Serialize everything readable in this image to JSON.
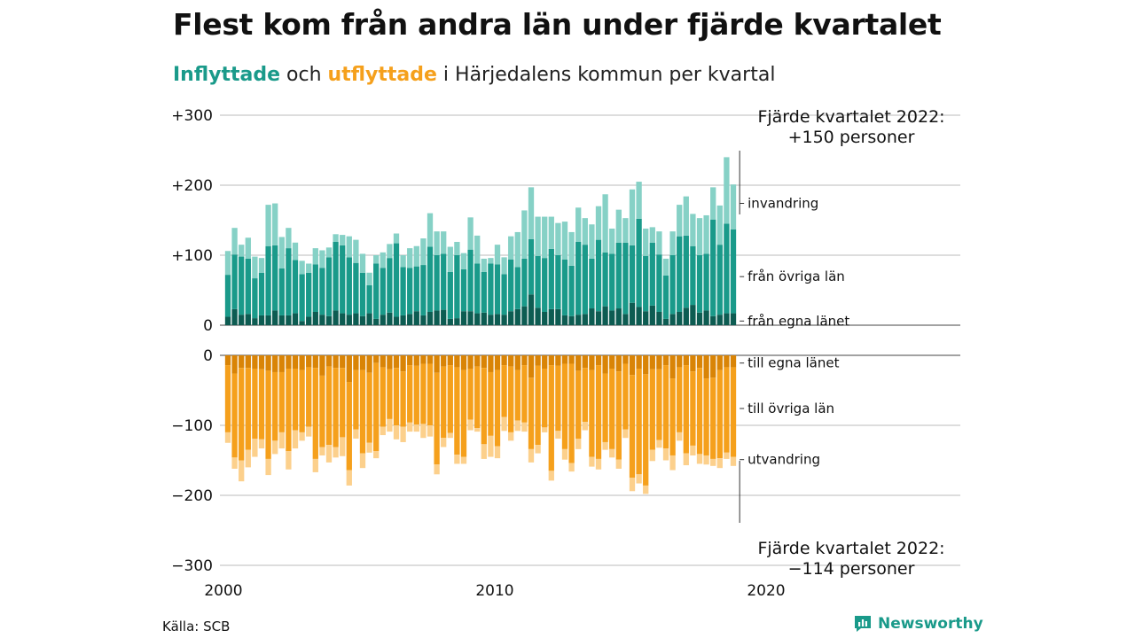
{
  "header": {
    "title": "Flest kom från andra län under fjärde kvartalet",
    "subtitle_in": "Inflyttade",
    "subtitle_mid": " och ",
    "subtitle_out": "utflyttade",
    "subtitle_rest": " i Härjedalens kommun per kvartal"
  },
  "footer": {
    "source": "Källa: SCB",
    "brand": "Newsworthy"
  },
  "annotations": {
    "top_line1": "Fjärde kvartalet 2022:",
    "top_line2": "+150 personer",
    "bottom_line1": "Fjärde kvartalet 2022:",
    "bottom_line2": "−114 personer"
  },
  "colors": {
    "in_own": "#0d5c52",
    "in_other": "#1a9a8a",
    "in_immig": "#86d1c6",
    "out_own": "#d98406",
    "out_other": "#f5a01c",
    "out_emig": "#fcd08c",
    "grid": "#dddddd",
    "brand": "#1a9a8a"
  },
  "chart_data": {
    "type": "bar",
    "stacked": true,
    "diverging": true,
    "x_ticks": [
      "2000",
      "2010",
      "2020"
    ],
    "y_ticks_top": [
      "+300",
      "+200",
      "+100",
      "0"
    ],
    "y_ticks_bottom": [
      "0",
      "−100",
      "−200",
      "−300"
    ],
    "ylim_top": [
      0,
      300
    ],
    "ylim_bottom": [
      -300,
      0
    ],
    "grid": true,
    "legend_position": "right",
    "series": [
      {
        "name": "från egna länet",
        "group": "in",
        "values": [
          12,
          23,
          15,
          16,
          10,
          14,
          14,
          21,
          14,
          14,
          17,
          6,
          12,
          19,
          15,
          13,
          21,
          17,
          15,
          17,
          13,
          17,
          9,
          15,
          18,
          12,
          14,
          16,
          20,
          14,
          19,
          21,
          22,
          9,
          10,
          20,
          20,
          17,
          18,
          15,
          16,
          15,
          20,
          23,
          27,
          44,
          25,
          19,
          23,
          23,
          14,
          13,
          15,
          16,
          24,
          20,
          27,
          21,
          24,
          16,
          32,
          26,
          20,
          28,
          19,
          9,
          16,
          19,
          25,
          29,
          18,
          21,
          13,
          15,
          17,
          17
        ]
      },
      {
        "name": "från övriga län",
        "group": "in",
        "values": [
          60,
          78,
          83,
          79,
          57,
          61,
          99,
          93,
          67,
          96,
          76,
          67,
          63,
          68,
          67,
          84,
          98,
          97,
          82,
          72,
          62,
          40,
          79,
          67,
          78,
          105,
          69,
          66,
          64,
          72,
          93,
          79,
          80,
          67,
          90,
          60,
          88,
          71,
          58,
          73,
          71,
          58,
          74,
          60,
          68,
          79,
          74,
          77,
          86,
          77,
          80,
          72,
          104,
          99,
          71,
          102,
          77,
          81,
          94,
          102,
          82,
          126,
          79,
          90,
          82,
          62,
          84,
          108,
          103,
          84,
          82,
          81,
          138,
          100,
          128,
          120
        ]
      },
      {
        "name": "invandring",
        "group": "in",
        "values": [
          34,
          38,
          17,
          30,
          31,
          21,
          59,
          60,
          45,
          29,
          25,
          19,
          13,
          23,
          25,
          14,
          11,
          15,
          30,
          33,
          27,
          18,
          12,
          22,
          20,
          14,
          17,
          28,
          29,
          38,
          48,
          34,
          32,
          36,
          19,
          23,
          46,
          40,
          19,
          8,
          28,
          24,
          33,
          50,
          69,
          74,
          56,
          59,
          46,
          46,
          54,
          48,
          49,
          38,
          49,
          48,
          83,
          36,
          47,
          35,
          80,
          53,
          39,
          22,
          33,
          24,
          34,
          45,
          56,
          46,
          53,
          55,
          46,
          56,
          95,
          64
        ]
      },
      {
        "name": "till egna länet",
        "group": "out",
        "values": [
          14,
          26,
          18,
          18,
          19,
          20,
          22,
          24,
          24,
          19,
          19,
          21,
          17,
          18,
          29,
          16,
          18,
          18,
          38,
          21,
          21,
          25,
          11,
          17,
          20,
          18,
          23,
          14,
          15,
          12,
          12,
          25,
          16,
          14,
          17,
          21,
          19,
          16,
          18,
          24,
          21,
          14,
          16,
          21,
          14,
          32,
          15,
          19,
          14,
          15,
          12,
          12,
          22,
          18,
          21,
          14,
          26,
          19,
          23,
          12,
          28,
          19,
          27,
          20,
          20,
          14,
          33,
          17,
          14,
          23,
          18,
          33,
          32,
          21,
          17,
          17
        ]
      },
      {
        "name": "till övriga län",
        "group": "out",
        "values": [
          96,
          120,
          132,
          117,
          100,
          100,
          126,
          98,
          86,
          118,
          88,
          89,
          85,
          130,
          102,
          112,
          113,
          99,
          126,
          85,
          119,
          100,
          126,
          85,
          71,
          82,
          79,
          82,
          84,
          86,
          88,
          131,
          102,
          97,
          125,
          124,
          73,
          88,
          109,
          91,
          109,
          74,
          94,
          72,
          82,
          102,
          113,
          84,
          151,
          93,
          122,
          142,
          97,
          77,
          124,
          134,
          98,
          115,
          126,
          94,
          147,
          151,
          159,
          115,
          101,
          119,
          110,
          93,
          126,
          106,
          123,
          110,
          116,
          126,
          122,
          128
        ]
      },
      {
        "name": "utvandring",
        "group": "out",
        "values": [
          15,
          16,
          30,
          25,
          26,
          13,
          23,
          19,
          23,
          26,
          26,
          12,
          14,
          19,
          12,
          25,
          15,
          27,
          22,
          13,
          21,
          14,
          10,
          12,
          18,
          20,
          22,
          13,
          10,
          20,
          16,
          14,
          13,
          7,
          13,
          10,
          15,
          5,
          21,
          30,
          17,
          20,
          12,
          15,
          13,
          19,
          12,
          7,
          14,
          11,
          15,
          12,
          15,
          12,
          14,
          15,
          11,
          12,
          13,
          12,
          19,
          13,
          12,
          16,
          11,
          17,
          21,
          12,
          17,
          14,
          14,
          13,
          10,
          14,
          9,
          13
        ]
      }
    ]
  }
}
